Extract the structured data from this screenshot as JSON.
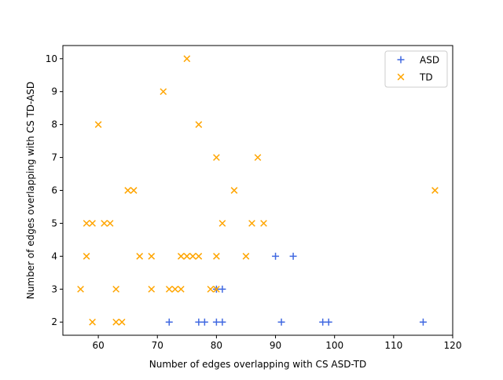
{
  "chart_data": {
    "type": "scatter",
    "title": "",
    "xlabel": "Number of edges overlapping with CS ASD-TD",
    "ylabel": "Number of edges overlapping with CS TD-ASD",
    "xlim": [
      54.0,
      120.0
    ],
    "ylim": [
      1.6,
      10.4
    ],
    "xticks": [
      60,
      70,
      80,
      90,
      100,
      110,
      120
    ],
    "yticks": [
      2,
      3,
      4,
      5,
      6,
      7,
      8,
      9,
      10
    ],
    "grid": false,
    "legend_position": "top-right",
    "series": [
      {
        "name": "ASD",
        "marker": "plus",
        "color": "#4169e1",
        "points": [
          [
            72,
            2
          ],
          [
            77,
            2
          ],
          [
            78,
            2
          ],
          [
            80,
            2
          ],
          [
            81,
            2
          ],
          [
            91,
            2
          ],
          [
            98,
            2
          ],
          [
            99,
            2
          ],
          [
            115,
            2
          ],
          [
            80,
            3
          ],
          [
            81,
            3
          ],
          [
            90,
            4
          ],
          [
            93,
            4
          ]
        ]
      },
      {
        "name": "TD",
        "marker": "x",
        "color": "#ffa500",
        "points": [
          [
            59,
            2
          ],
          [
            63,
            2
          ],
          [
            64,
            2
          ],
          [
            57,
            3
          ],
          [
            63,
            3
          ],
          [
            69,
            3
          ],
          [
            72,
            3
          ],
          [
            73,
            3
          ],
          [
            74,
            3
          ],
          [
            79,
            3
          ],
          [
            80,
            3
          ],
          [
            58,
            4
          ],
          [
            67,
            4
          ],
          [
            69,
            4
          ],
          [
            74,
            4
          ],
          [
            75,
            4
          ],
          [
            76,
            4
          ],
          [
            77,
            4
          ],
          [
            80,
            4
          ],
          [
            85,
            4
          ],
          [
            58,
            5
          ],
          [
            59,
            5
          ],
          [
            61,
            5
          ],
          [
            62,
            5
          ],
          [
            81,
            5
          ],
          [
            86,
            5
          ],
          [
            88,
            5
          ],
          [
            65,
            6
          ],
          [
            66,
            6
          ],
          [
            83,
            6
          ],
          [
            117,
            6
          ],
          [
            80,
            7
          ],
          [
            87,
            7
          ],
          [
            60,
            8
          ],
          [
            77,
            8
          ],
          [
            71,
            9
          ],
          [
            75,
            10
          ]
        ]
      }
    ]
  }
}
